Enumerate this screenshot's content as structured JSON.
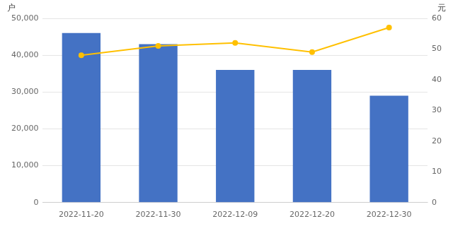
{
  "chart_data": {
    "type": "bar",
    "ylabel": "户",
    "y2label": "元",
    "categories": [
      "2022-11-20",
      "2022-11-30",
      "2022-12-09",
      "2022-12-20",
      "2022-12-30"
    ],
    "series": [
      {
        "type": "bar",
        "color": "#4472C4",
        "values": [
          46000,
          43000,
          36000,
          36000,
          29000
        ]
      },
      {
        "type": "line",
        "color": "#FFC000",
        "marker": "circle",
        "line_style": "solid",
        "axis": "y2",
        "values": [
          48,
          51,
          52,
          49,
          57
        ]
      }
    ],
    "ylim": [
      0,
      50000
    ],
    "yticks": [
      0,
      {
        "value": 10000,
        "label": "10,000"
      },
      {
        "value": 20000,
        "label": "20,000"
      },
      {
        "value": 30000,
        "label": "30,000"
      },
      {
        "value": 40000,
        "label": "40,000"
      },
      {
        "value": 50000,
        "label": "50,000"
      }
    ],
    "y2lim": [
      0,
      60
    ],
    "y2ticks": [
      0,
      10,
      20,
      30,
      40,
      50,
      60
    ],
    "grid": true
  }
}
